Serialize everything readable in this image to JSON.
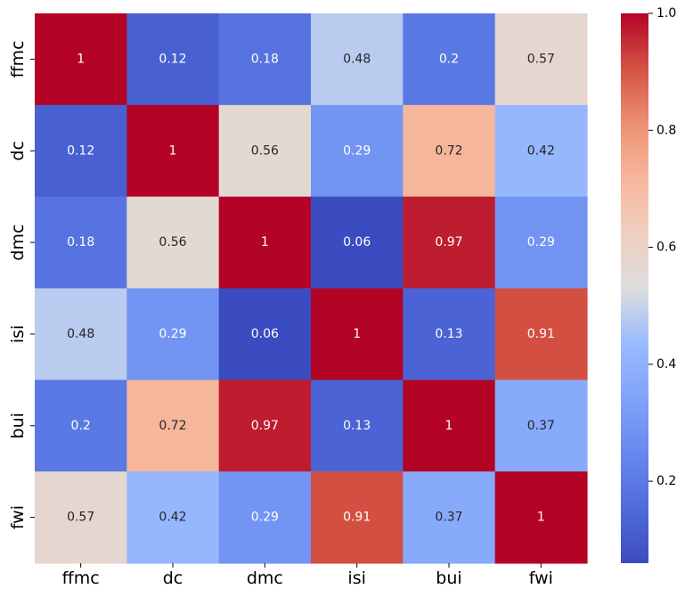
{
  "chart_data": {
    "type": "heatmap",
    "title": "",
    "xlabel": "",
    "ylabel": "",
    "x_categories": [
      "ffmc",
      "dc",
      "dmc",
      "isi",
      "bui",
      "fwi"
    ],
    "y_categories": [
      "ffmc",
      "dc",
      "dmc",
      "isi",
      "bui",
      "fwi"
    ],
    "values": [
      [
        1,
        0.12,
        0.18,
        0.48,
        0.2,
        0.57
      ],
      [
        0.12,
        1,
        0.56,
        0.29,
        0.72,
        0.42
      ],
      [
        0.18,
        0.56,
        1,
        0.06,
        0.97,
        0.29
      ],
      [
        0.48,
        0.29,
        0.06,
        1,
        0.13,
        0.91
      ],
      [
        0.2,
        0.72,
        0.97,
        0.13,
        1,
        0.37
      ],
      [
        0.57,
        0.42,
        0.29,
        0.91,
        0.37,
        1
      ]
    ],
    "annotations": [
      [
        "1",
        "0.12",
        "0.18",
        "0.48",
        "0.2",
        "0.57"
      ],
      [
        "0.12",
        "1",
        "0.56",
        "0.29",
        "0.72",
        "0.42"
      ],
      [
        "0.18",
        "0.56",
        "1",
        "0.06",
        "0.97",
        "0.29"
      ],
      [
        "0.48",
        "0.29",
        "0.06",
        "1",
        "0.13",
        "0.91"
      ],
      [
        "0.2",
        "0.72",
        "0.97",
        "0.13",
        "1",
        "0.37"
      ],
      [
        "0.57",
        "0.42",
        "0.29",
        "0.91",
        "0.37",
        "1"
      ]
    ],
    "colormap": "coolwarm",
    "colorbar": {
      "range": [
        0.06,
        1.0
      ],
      "ticks": [
        0.2,
        0.4,
        0.6,
        0.8,
        1.0
      ],
      "tick_labels": [
        "0.2",
        "0.4",
        "0.6",
        "0.8",
        "1.0"
      ]
    }
  }
}
